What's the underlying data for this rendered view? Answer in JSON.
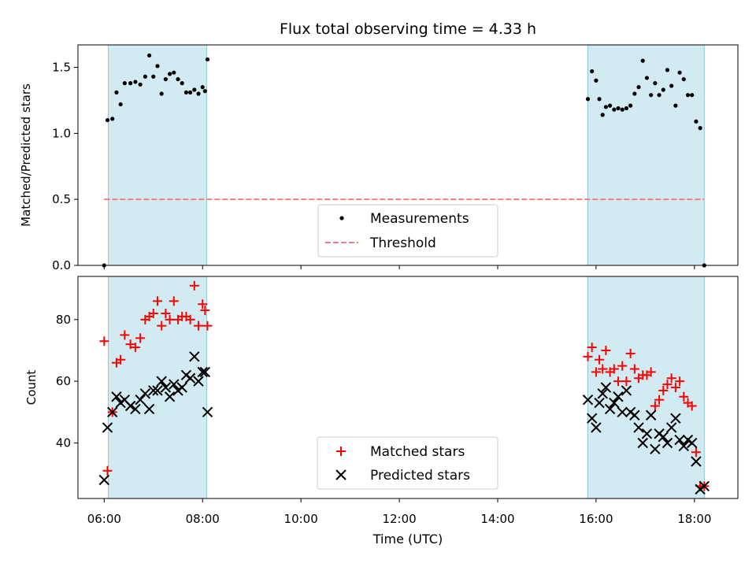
{
  "chart_data": {
    "title": "Flux total observing time = 4.33 h",
    "xlabel": "Time (UTC)",
    "xlim": [
      "05:28",
      "18:53"
    ],
    "xticks": [
      "06:00",
      "08:00",
      "10:00",
      "12:00",
      "14:00",
      "16:00",
      "18:00"
    ],
    "shaded_spans": [
      [
        "06:05",
        "08:05"
      ],
      [
        "15:50",
        "18:12"
      ]
    ],
    "shade_color": "#add8e6",
    "subplots": [
      {
        "type": "scatter",
        "ylabel": "Matched/Predicted stars",
        "ylim": [
          0,
          1.67
        ],
        "yticks": [
          "0.0",
          "0.5",
          "1.0",
          "1.5"
        ],
        "legend_position": "lower-center",
        "series": [
          {
            "name": "Measurements",
            "marker": "dot",
            "color": "#000000",
            "points": [
              [
                "06:00",
                0.0
              ],
              [
                "06:04",
                1.1
              ],
              [
                "06:10",
                1.11
              ],
              [
                "06:15",
                1.31
              ],
              [
                "06:20",
                1.22
              ],
              [
                "06:25",
                1.38
              ],
              [
                "06:32",
                1.38
              ],
              [
                "06:38",
                1.39
              ],
              [
                "06:44",
                1.37
              ],
              [
                "06:50",
                1.43
              ],
              [
                "06:55",
                1.59
              ],
              [
                "07:00",
                1.43
              ],
              [
                "07:05",
                1.51
              ],
              [
                "07:10",
                1.3
              ],
              [
                "07:15",
                1.41
              ],
              [
                "07:20",
                1.45
              ],
              [
                "07:25",
                1.46
              ],
              [
                "07:30",
                1.41
              ],
              [
                "07:35",
                1.38
              ],
              [
                "07:40",
                1.31
              ],
              [
                "07:45",
                1.31
              ],
              [
                "07:50",
                1.33
              ],
              [
                "07:55",
                1.3
              ],
              [
                "08:00",
                1.35
              ],
              [
                "08:03",
                1.32
              ],
              [
                "08:06",
                1.56
              ],
              [
                "15:50",
                1.26
              ],
              [
                "15:55",
                1.47
              ],
              [
                "16:00",
                1.4
              ],
              [
                "16:04",
                1.26
              ],
              [
                "16:08",
                1.14
              ],
              [
                "16:12",
                1.2
              ],
              [
                "16:17",
                1.21
              ],
              [
                "16:22",
                1.18
              ],
              [
                "16:27",
                1.19
              ],
              [
                "16:32",
                1.18
              ],
              [
                "16:37",
                1.19
              ],
              [
                "16:42",
                1.21
              ],
              [
                "16:47",
                1.3
              ],
              [
                "16:52",
                1.35
              ],
              [
                "16:57",
                1.55
              ],
              [
                "17:02",
                1.42
              ],
              [
                "17:07",
                1.29
              ],
              [
                "17:12",
                1.38
              ],
              [
                "17:17",
                1.29
              ],
              [
                "17:22",
                1.33
              ],
              [
                "17:27",
                1.48
              ],
              [
                "17:32",
                1.36
              ],
              [
                "17:37",
                1.21
              ],
              [
                "17:42",
                1.46
              ],
              [
                "17:47",
                1.41
              ],
              [
                "17:52",
                1.29
              ],
              [
                "17:57",
                1.29
              ],
              [
                "18:02",
                1.09
              ],
              [
                "18:07",
                1.04
              ],
              [
                "18:12",
                0.0
              ]
            ]
          },
          {
            "name": "Threshold",
            "style": "dashed",
            "color": "#f08080",
            "y": 0.5,
            "x_range": [
              "06:00",
              "18:12"
            ]
          }
        ]
      },
      {
        "type": "scatter",
        "ylabel": "Count",
        "ylim": [
          22,
          94
        ],
        "yticks": [
          "40",
          "60",
          "80"
        ],
        "legend_position": "lower-center",
        "series": [
          {
            "name": "Matched stars",
            "marker": "+",
            "color": "#ff0000",
            "points": [
              [
                "06:00",
                73
              ],
              [
                "06:04",
                31
              ],
              [
                "06:10",
                50
              ],
              [
                "06:15",
                66
              ],
              [
                "06:20",
                67
              ],
              [
                "06:25",
                75
              ],
              [
                "06:32",
                72
              ],
              [
                "06:38",
                71
              ],
              [
                "06:44",
                74
              ],
              [
                "06:50",
                80
              ],
              [
                "06:55",
                81
              ],
              [
                "07:00",
                82
              ],
              [
                "07:05",
                86
              ],
              [
                "07:10",
                78
              ],
              [
                "07:15",
                82
              ],
              [
                "07:20",
                80
              ],
              [
                "07:25",
                86
              ],
              [
                "07:30",
                80
              ],
              [
                "07:35",
                81
              ],
              [
                "07:40",
                81
              ],
              [
                "07:45",
                80
              ],
              [
                "07:50",
                91
              ],
              [
                "07:55",
                78
              ],
              [
                "08:00",
                85
              ],
              [
                "08:03",
                83
              ],
              [
                "08:06",
                78
              ],
              [
                "15:50",
                68
              ],
              [
                "15:55",
                71
              ],
              [
                "16:00",
                63
              ],
              [
                "16:04",
                67
              ],
              [
                "16:08",
                64
              ],
              [
                "16:12",
                70
              ],
              [
                "16:17",
                63
              ],
              [
                "16:22",
                64
              ],
              [
                "16:27",
                60
              ],
              [
                "16:32",
                65
              ],
              [
                "16:37",
                60
              ],
              [
                "16:42",
                69
              ],
              [
                "16:47",
                64
              ],
              [
                "16:52",
                61
              ],
              [
                "16:57",
                62
              ],
              [
                "17:02",
                62
              ],
              [
                "17:07",
                63
              ],
              [
                "17:12",
                52
              ],
              [
                "17:17",
                54
              ],
              [
                "17:22",
                57
              ],
              [
                "17:27",
                59
              ],
              [
                "17:32",
                61
              ],
              [
                "17:37",
                58
              ],
              [
                "17:42",
                60
              ],
              [
                "17:47",
                55
              ],
              [
                "17:52",
                53
              ],
              [
                "17:57",
                52
              ],
              [
                "18:02",
                37
              ],
              [
                "18:07",
                26
              ],
              [
                "18:12",
                26
              ]
            ]
          },
          {
            "name": "Predicted stars",
            "marker": "x",
            "color": "#000000",
            "points": [
              [
                "06:00",
                28
              ],
              [
                "06:04",
                45
              ],
              [
                "06:10",
                50
              ],
              [
                "06:15",
                55
              ],
              [
                "06:20",
                53
              ],
              [
                "06:25",
                54
              ],
              [
                "06:32",
                52
              ],
              [
                "06:38",
                51
              ],
              [
                "06:44",
                54
              ],
              [
                "06:50",
                56
              ],
              [
                "06:55",
                51
              ],
              [
                "07:00",
                57
              ],
              [
                "07:05",
                57
              ],
              [
                "07:10",
                60
              ],
              [
                "07:15",
                58
              ],
              [
                "07:20",
                55
              ],
              [
                "07:25",
                59
              ],
              [
                "07:30",
                57
              ],
              [
                "07:35",
                58
              ],
              [
                "07:40",
                62
              ],
              [
                "07:45",
                61
              ],
              [
                "07:50",
                68
              ],
              [
                "07:55",
                60
              ],
              [
                "08:00",
                63
              ],
              [
                "08:03",
                63
              ],
              [
                "08:06",
                50
              ],
              [
                "15:50",
                54
              ],
              [
                "15:55",
                48
              ],
              [
                "16:00",
                45
              ],
              [
                "16:04",
                53
              ],
              [
                "16:08",
                56
              ],
              [
                "16:12",
                58
              ],
              [
                "16:17",
                51
              ],
              [
                "16:22",
                53
              ],
              [
                "16:27",
                55
              ],
              [
                "16:32",
                50
              ],
              [
                "16:37",
                57
              ],
              [
                "16:42",
                50
              ],
              [
                "16:47",
                49
              ],
              [
                "16:52",
                45
              ],
              [
                "16:57",
                40
              ],
              [
                "17:02",
                43
              ],
              [
                "17:07",
                49
              ],
              [
                "17:12",
                38
              ],
              [
                "17:17",
                43
              ],
              [
                "17:22",
                42
              ],
              [
                "17:27",
                40
              ],
              [
                "17:32",
                45
              ],
              [
                "17:37",
                48
              ],
              [
                "17:42",
                41
              ],
              [
                "17:47",
                39
              ],
              [
                "17:52",
                41
              ],
              [
                "17:57",
                40
              ],
              [
                "18:02",
                34
              ],
              [
                "18:07",
                25
              ],
              [
                "18:12",
                26
              ]
            ]
          }
        ]
      }
    ]
  }
}
